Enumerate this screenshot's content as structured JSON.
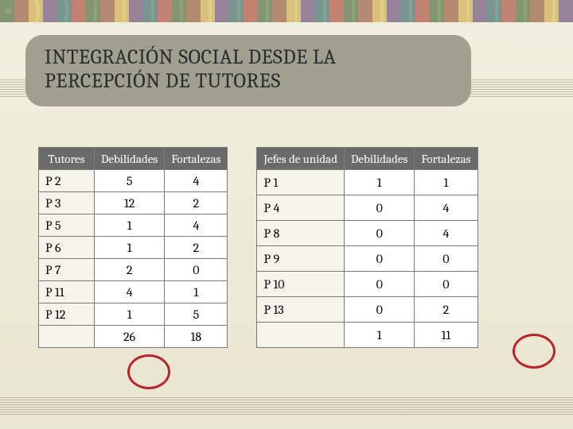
{
  "title": "INTEGRACIÓN SOCIAL DESDE LA PERCEPCIÓN DE TUTORES",
  "table1": {
    "columns": [
      "Tutores",
      "Debilidades",
      "Fortalezas"
    ],
    "rows": [
      [
        "P 2",
        "5",
        "4"
      ],
      [
        "P 3",
        "12",
        "2"
      ],
      [
        "P 5",
        "1",
        "4"
      ],
      [
        "P 6",
        "1",
        "2"
      ],
      [
        "P 7",
        "2",
        "0"
      ],
      [
        "P 11",
        "4",
        "1"
      ],
      [
        "P 12",
        "1",
        "5"
      ]
    ],
    "totals": [
      "",
      "26",
      "18"
    ]
  },
  "table2": {
    "columns": [
      "Jefes de unidad",
      "Debilidades",
      "Fortalezas"
    ],
    "rows": [
      [
        "P 1",
        "1",
        "1"
      ],
      [
        "P 4",
        "0",
        "4"
      ],
      [
        "P 8",
        "0",
        "4"
      ],
      [
        "P 9",
        "0",
        "0"
      ],
      [
        "P 10",
        "0",
        "0"
      ],
      [
        "P 13",
        "0",
        "2"
      ]
    ],
    "totals": [
      "",
      "1",
      "11"
    ]
  },
  "colors": {
    "pill_bg": "#a0a090",
    "header_bg": "#6a6a6a",
    "circle": "#b8262a",
    "page_bg_top": "#f3efe0",
    "page_bg_bottom": "#eae5d0",
    "border": "#7a7a7a"
  }
}
